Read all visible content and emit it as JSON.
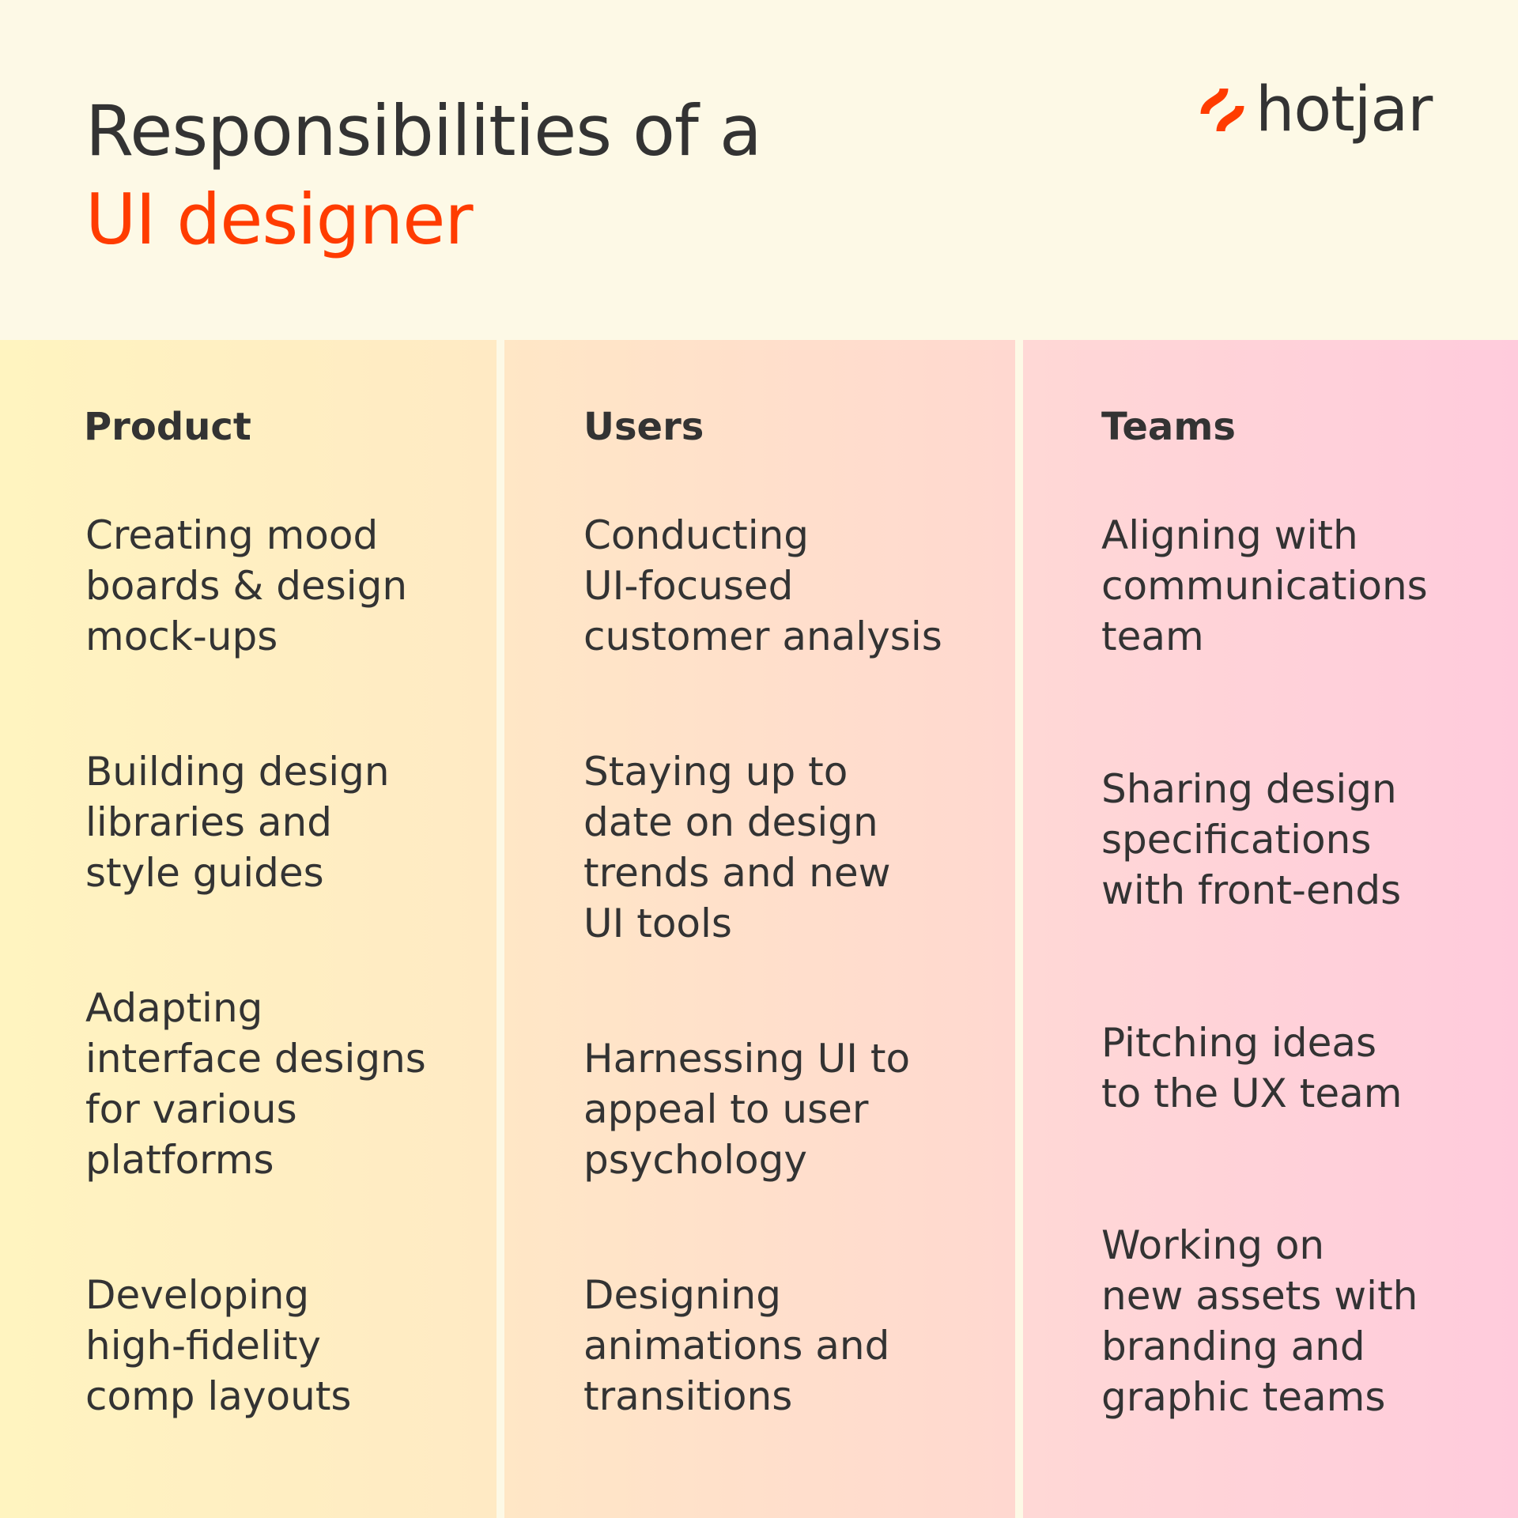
{
  "title": {
    "line1": "Responsibilities of a",
    "line2": "UI designer"
  },
  "logo": {
    "text": "hotjar",
    "accent": "#FF3C00"
  },
  "columns": [
    {
      "heading": "Product",
      "items": [
        "Creating mood\nboards & design\nmock-ups",
        "Building design\nlibraries and\nstyle guides",
        "Adapting\ninterface designs\nfor various\nplatforms",
        "Developing\nhigh-fidelity\ncomp layouts"
      ]
    },
    {
      "heading": "Users",
      "items": [
        "Conducting\nUI-focused\ncustomer analysis",
        "Staying up to\ndate on design\ntrends and new\nUI tools",
        "Harnessing UI to\nappeal to user\npsychology",
        "Designing\nanimations and\ntransitions"
      ]
    },
    {
      "heading": "Teams",
      "items": [
        "Aligning with\ncommunications\nteam",
        "Sharing design\nspecifications\nwith front-ends",
        "Pitching ideas\nto the UX team",
        "Working on\nnew assets with\nbranding and\ngraphic teams"
      ]
    }
  ]
}
